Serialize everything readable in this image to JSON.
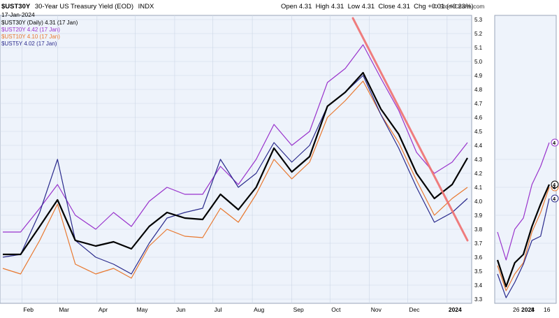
{
  "header": {
    "symbol": "$UST30Y",
    "description": "30-Year US Treasury Yield (EOD)",
    "exchange": "INDX",
    "date": "17-Jan-2024",
    "ohlc": "Open 4.31  High 4.31  Low 4.31  Close 4.31  Chg +0.01 (+0.23%)",
    "watermark": "© StockCharts.com"
  },
  "legend": [
    {
      "label": "$UST30Y (Daily) 4.31 (17 Jan)",
      "color": "#000000"
    },
    {
      "label": "$UST20Y 4.42 (17 Jan)",
      "color": "#9933cc"
    },
    {
      "label": "$UST10Y 4.10 (17 Jan)",
      "color": "#e8782f"
    },
    {
      "label": "$UST5Y 4.02 (17 Jan)",
      "color": "#2a2a8c"
    }
  ],
  "zoom_panel": {
    "x_labels": [
      "26",
      "2024",
      "8",
      "16"
    ],
    "right_labels": [
      "4",
      "4",
      "4",
      "4"
    ]
  },
  "chart_data": {
    "type": "line",
    "x": [
      "2023-01-17",
      "2023-01-31",
      "2023-02-15",
      "2023-03-01",
      "2023-03-15",
      "2023-03-31",
      "2023-04-14",
      "2023-04-28",
      "2023-05-12",
      "2023-05-26",
      "2023-06-09",
      "2023-06-23",
      "2023-07-07",
      "2023-07-21",
      "2023-08-04",
      "2023-08-18",
      "2023-09-01",
      "2023-09-15",
      "2023-09-29",
      "2023-10-13",
      "2023-10-27",
      "2023-11-10",
      "2023-11-24",
      "2023-12-08",
      "2023-12-22",
      "2024-01-05",
      "2024-01-17"
    ],
    "x_tick_labels": [
      "Feb",
      "Mar",
      "Apr",
      "May",
      "Jun",
      "Jul",
      "Aug",
      "Sep",
      "Oct",
      "Nov",
      "Dec",
      "2024"
    ],
    "y_ticks": [
      3.3,
      3.4,
      3.5,
      3.6,
      3.7,
      3.8,
      3.9,
      4.0,
      4.1,
      4.2,
      4.3,
      4.4,
      4.5,
      4.6,
      4.7,
      4.8,
      4.9,
      5.0,
      5.1,
      5.2,
      5.3
    ],
    "ylim": [
      3.27,
      5.33
    ],
    "grid": true,
    "legend_position": "top-left",
    "series": [
      {
        "name": "$UST30Y",
        "color": "#000000",
        "width": 2.2,
        "values": [
          3.62,
          3.62,
          3.82,
          4.01,
          3.72,
          3.68,
          3.71,
          3.66,
          3.82,
          3.92,
          3.88,
          3.87,
          4.05,
          3.94,
          4.1,
          4.38,
          4.21,
          4.32,
          4.68,
          4.78,
          4.92,
          4.66,
          4.48,
          4.2,
          4.02,
          4.12,
          4.31
        ]
      },
      {
        "name": "$UST20Y",
        "color": "#9933cc",
        "width": 1.2,
        "values": [
          3.78,
          3.78,
          3.95,
          4.12,
          3.9,
          3.8,
          3.92,
          3.82,
          4.0,
          4.1,
          4.05,
          4.05,
          4.25,
          4.12,
          4.3,
          4.55,
          4.4,
          4.5,
          4.85,
          4.95,
          5.12,
          4.88,
          4.65,
          4.35,
          4.2,
          4.28,
          4.42
        ]
      },
      {
        "name": "$UST10Y",
        "color": "#e8782f",
        "width": 1.2,
        "values": [
          3.52,
          3.48,
          3.72,
          3.98,
          3.55,
          3.48,
          3.52,
          3.45,
          3.68,
          3.8,
          3.75,
          3.74,
          3.95,
          3.85,
          4.05,
          4.3,
          4.16,
          4.28,
          4.6,
          4.72,
          4.86,
          4.62,
          4.42,
          4.15,
          3.9,
          4.02,
          4.1
        ]
      },
      {
        "name": "$UST5Y",
        "color": "#2a2a8c",
        "width": 1.2,
        "values": [
          3.6,
          3.62,
          3.92,
          4.3,
          3.72,
          3.6,
          3.55,
          3.48,
          3.7,
          3.88,
          3.92,
          3.95,
          4.3,
          4.1,
          4.2,
          4.42,
          4.28,
          4.4,
          4.68,
          4.78,
          4.9,
          4.62,
          4.38,
          4.1,
          3.85,
          3.92,
          4.02
        ]
      }
    ],
    "annotations": [
      {
        "type": "trendline",
        "color": "#f07070",
        "from": {
          "x": "2023-10-19",
          "y": 5.31
        },
        "to": {
          "x": "2024-01-17",
          "y": 3.72
        }
      }
    ],
    "zoom_panel_series": [
      {
        "name": "$UST30Y",
        "color": "#000000",
        "values": [
          3.58,
          3.39,
          3.56,
          3.62,
          3.82,
          3.98,
          4.12
        ]
      },
      {
        "name": "$UST20Y",
        "color": "#9933cc",
        "values": [
          3.78,
          3.58,
          3.8,
          3.88,
          4.12,
          4.25,
          4.42
        ]
      },
      {
        "name": "$UST10Y",
        "color": "#e8782f",
        "values": [
          3.54,
          3.36,
          3.48,
          3.56,
          3.78,
          3.92,
          4.1
        ]
      },
      {
        "name": "$UST5Y",
        "color": "#2a2a8c",
        "values": [
          3.48,
          3.31,
          3.42,
          3.55,
          3.72,
          3.75,
          4.02
        ]
      }
    ]
  }
}
